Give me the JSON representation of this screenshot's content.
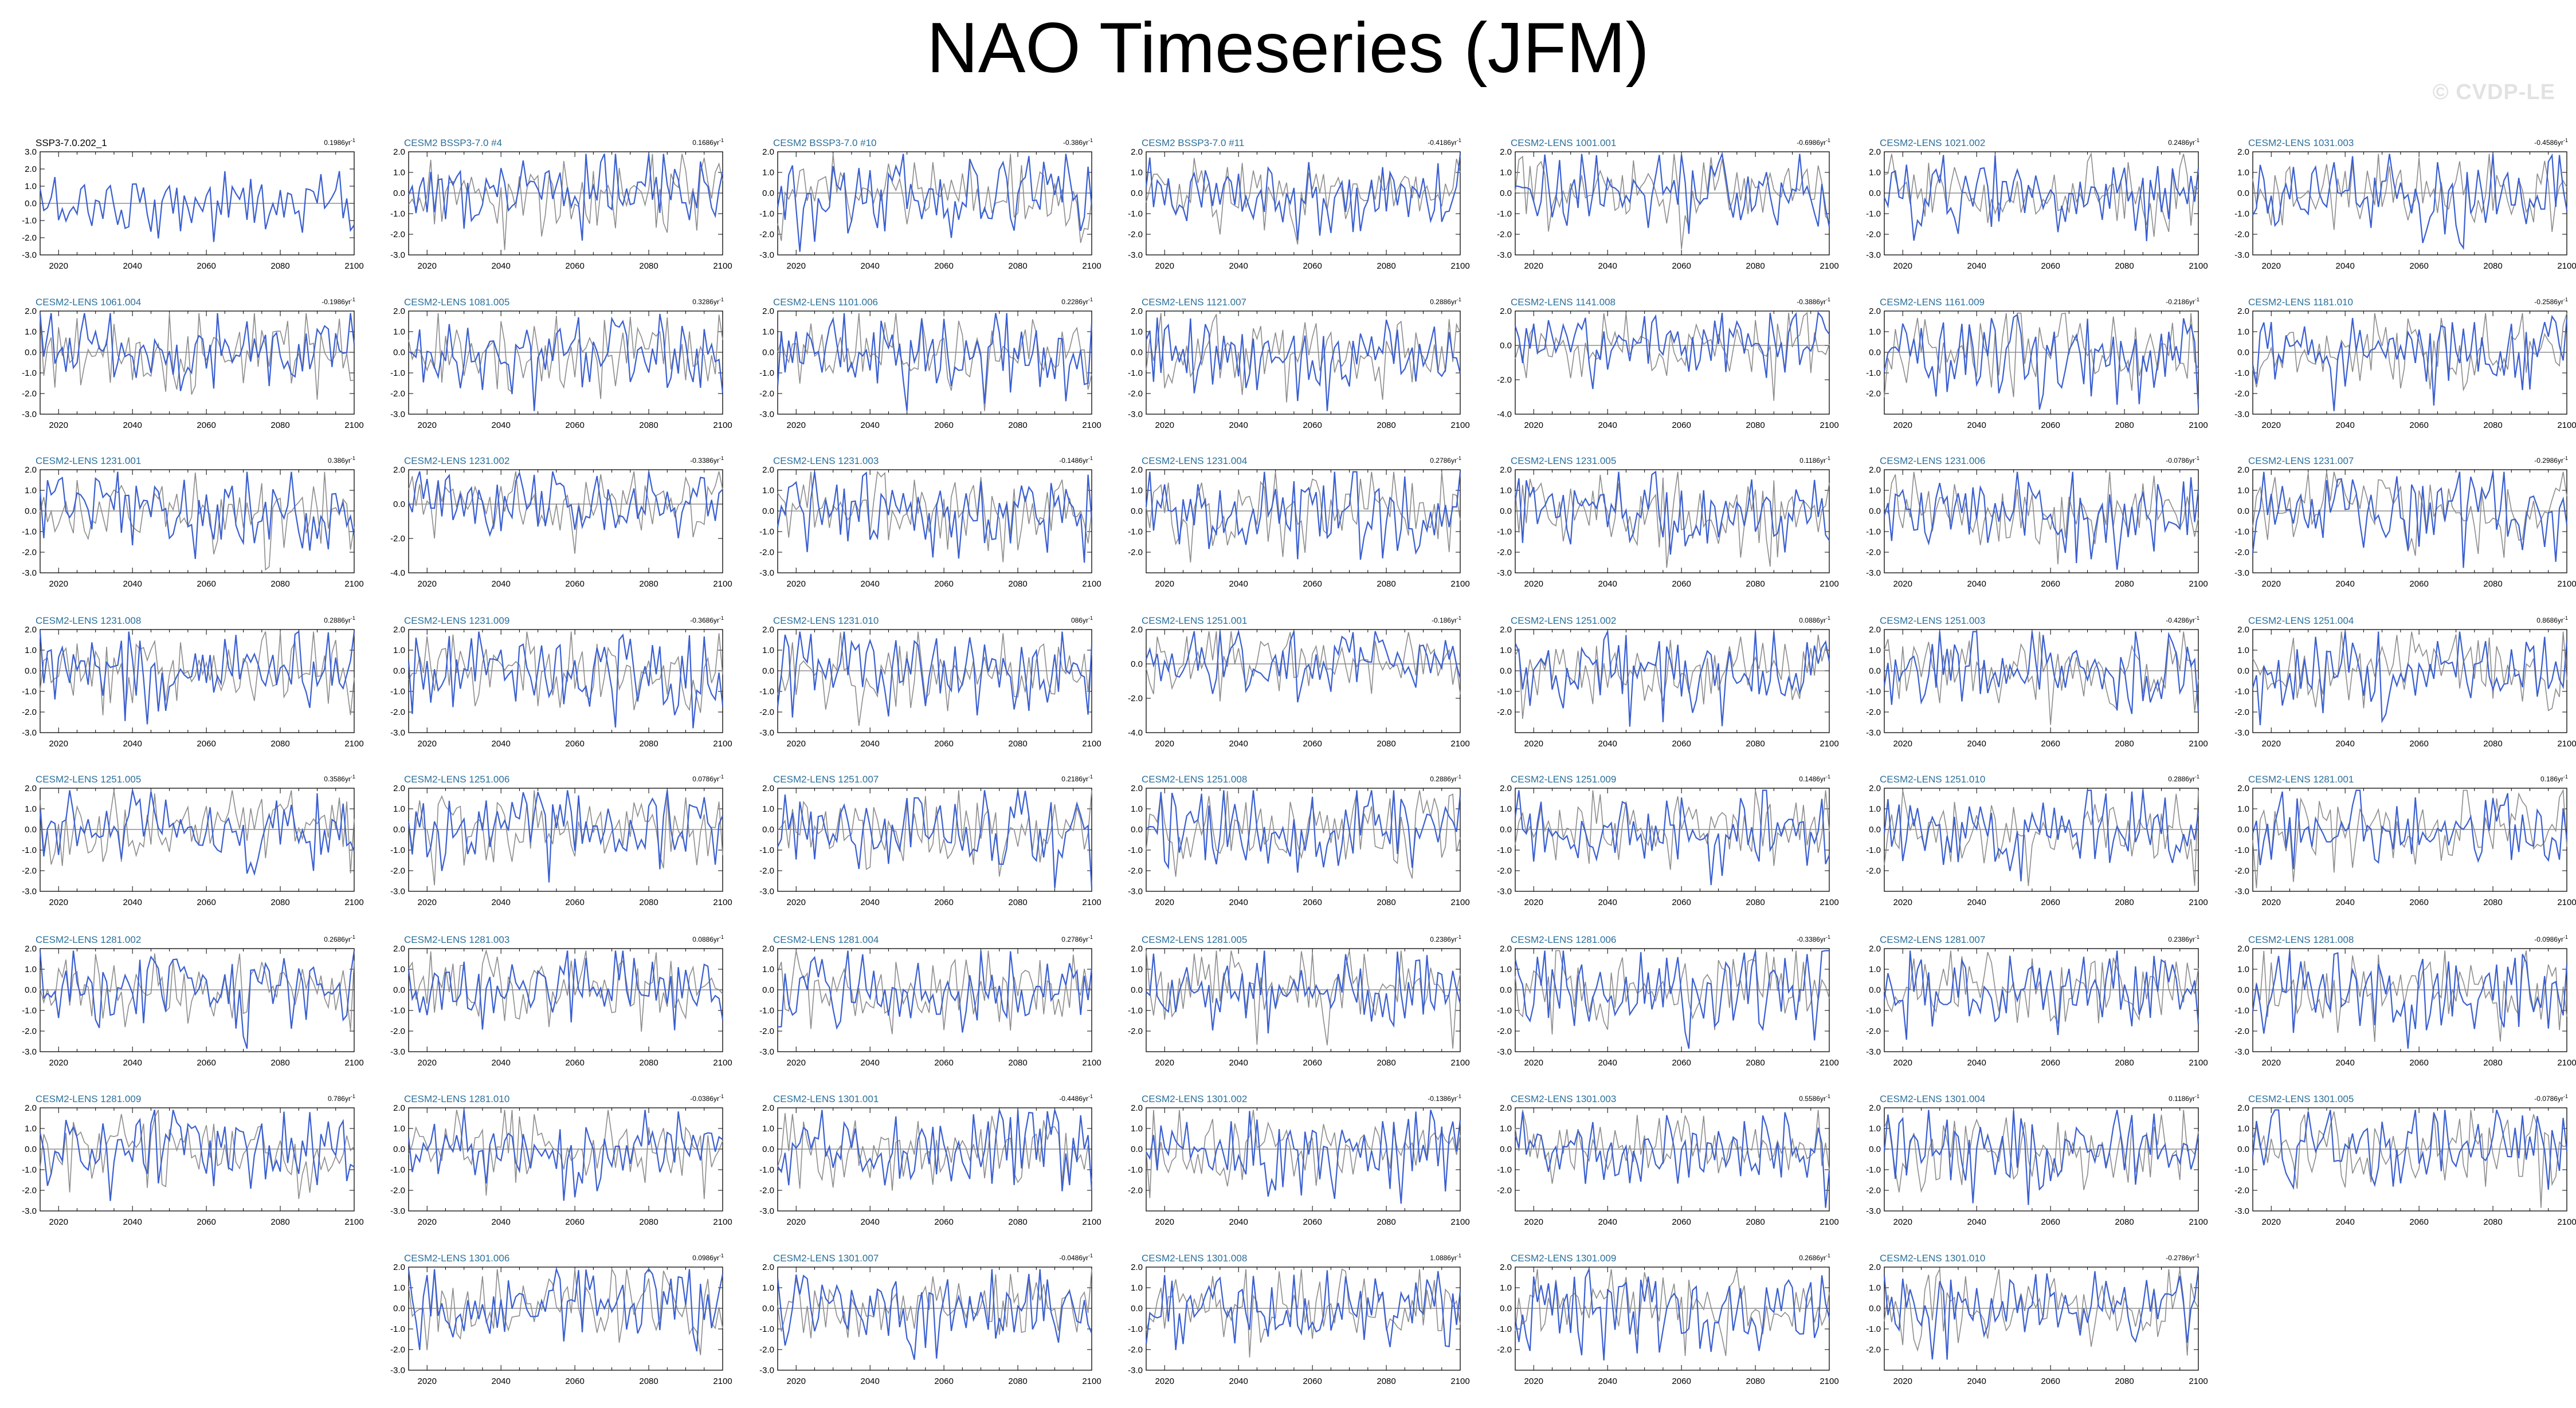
{
  "figure": {
    "title": "NAO Timeseries (JFM)",
    "watermark": "© CVDP-LE",
    "colors": {
      "simulation_line": "#3a5fd0",
      "comparison_line": "#8c8c8c",
      "title_reference": "#000000",
      "title_member": "#2a6f9b",
      "axis": "#000000"
    }
  },
  "chart_data": {
    "type": "line",
    "x_range": [
      2015,
      2100
    ],
    "x_ticks": [
      "2020",
      "2040",
      "2060",
      "2080",
      "2100"
    ],
    "trend_unit": "86yr",
    "trend_exponent": "-1",
    "series_colors": {
      "member": "#3a5fd0",
      "reference": "#8c8c8c"
    },
    "panels": [
      {
        "name": "SSP3-7.0.202_1",
        "trend": "0.19",
        "ylim": [
          -3,
          3
        ],
        "yticks": [
          "3.0",
          "2.0",
          "1.0",
          "0.0",
          "-1.0",
          "-2.0",
          "-3.0"
        ],
        "reference": true
      },
      {
        "name": "CESM2 BSSP3-7.0 #4",
        "trend": "0.16",
        "ylim": [
          -3,
          2
        ],
        "yticks": [
          "2.0",
          "1.0",
          "0.0",
          "-1.0",
          "-2.0",
          "-3.0"
        ]
      },
      {
        "name": "CESM2 BSSP3-7.0 #10",
        "trend": "-0.3",
        "ylim": [
          -3,
          2
        ],
        "yticks": [
          "2.0",
          "1.0",
          "0.0",
          "-1.0",
          "-2.0",
          "-3.0"
        ]
      },
      {
        "name": "CESM2 BSSP3-7.0 #11",
        "trend": "-0.41",
        "ylim": [
          -3,
          2
        ],
        "yticks": [
          "2.0",
          "1.0",
          "0.0",
          "-1.0",
          "-2.0",
          "-3.0"
        ]
      },
      {
        "name": "CESM2-LENS 1001.001",
        "trend": "-0.69",
        "ylim": [
          -3,
          2
        ],
        "yticks": [
          "2.0",
          "1.0",
          "0.0",
          "-1.0",
          "-2.0",
          "-3.0"
        ]
      },
      {
        "name": "CESM2-LENS 1021.002",
        "trend": "0.24",
        "ylim": [
          -3,
          2
        ],
        "yticks": [
          "2.0",
          "1.0",
          "0.0",
          "-1.0",
          "-2.0",
          "-3.0"
        ]
      },
      {
        "name": "CESM2-LENS 1031.003",
        "trend": "-0.45",
        "ylim": [
          -3,
          2
        ],
        "yticks": [
          "2.0",
          "1.0",
          "0.0",
          "-1.0",
          "-2.0",
          "-3.0"
        ]
      },
      {
        "name": "CESM2-LENS 1061.004",
        "trend": "-0.19",
        "ylim": [
          -3,
          2
        ],
        "yticks": [
          "2.0",
          "1.0",
          "0.0",
          "-1.0",
          "-2.0",
          "-3.0"
        ]
      },
      {
        "name": "CESM2-LENS 1081.005",
        "trend": "0.32",
        "ylim": [
          -3,
          2
        ],
        "yticks": [
          "2.0",
          "1.0",
          "0.0",
          "-1.0",
          "-2.0",
          "-3.0"
        ]
      },
      {
        "name": "CESM2-LENS 1101.006",
        "trend": "0.22",
        "ylim": [
          -3,
          2
        ],
        "yticks": [
          "2.0",
          "1.0",
          "0.0",
          "-1.0",
          "-2.0",
          "-3.0"
        ]
      },
      {
        "name": "CESM2-LENS 1121.007",
        "trend": "0.28",
        "ylim": [
          -3,
          2
        ],
        "yticks": [
          "2.0",
          "1.0",
          "0.0",
          "-1.0",
          "-2.0",
          "-3.0"
        ]
      },
      {
        "name": "CESM2-LENS 1141.008",
        "trend": "-0.38",
        "ylim": [
          -4,
          2
        ],
        "yticks": [
          "2.0",
          "0.0",
          "-2.0",
          "-4.0"
        ]
      },
      {
        "name": "CESM2-LENS 1161.009",
        "trend": "-0.21",
        "ylim": [
          -3,
          2
        ],
        "yticks": [
          "2.0",
          "1.0",
          "0.0",
          "-1.0",
          "-2.0"
        ]
      },
      {
        "name": "CESM2-LENS 1181.010",
        "trend": "-0.25",
        "ylim": [
          -3,
          2
        ],
        "yticks": [
          "2.0",
          "1.0",
          "0.0",
          "-1.0",
          "-2.0",
          "-3.0"
        ]
      },
      {
        "name": "CESM2-LENS 1231.001",
        "trend": "0.3",
        "ylim": [
          -3,
          2
        ],
        "yticks": [
          "2.0",
          "1.0",
          "0.0",
          "-1.0",
          "-2.0",
          "-3.0"
        ]
      },
      {
        "name": "CESM2-LENS 1231.002",
        "trend": "-0.33",
        "ylim": [
          -4,
          2
        ],
        "yticks": [
          "2.0",
          "0.0",
          "-2.0",
          "-4.0"
        ]
      },
      {
        "name": "CESM2-LENS 1231.003",
        "trend": "-0.14",
        "ylim": [
          -3,
          2
        ],
        "yticks": [
          "2.0",
          "1.0",
          "0.0",
          "-1.0",
          "-2.0",
          "-3.0"
        ]
      },
      {
        "name": "CESM2-LENS 1231.004",
        "trend": "0.27",
        "ylim": [
          -3,
          2
        ],
        "yticks": [
          "2.0",
          "1.0",
          "0.0",
          "-1.0",
          "-2.0"
        ]
      },
      {
        "name": "CESM2-LENS 1231.005",
        "trend": "0.11",
        "ylim": [
          -3,
          2
        ],
        "yticks": [
          "2.0",
          "1.0",
          "0.0",
          "-1.0",
          "-2.0",
          "-3.0"
        ]
      },
      {
        "name": "CESM2-LENS 1231.006",
        "trend": "-0.07",
        "ylim": [
          -3,
          2
        ],
        "yticks": [
          "2.0",
          "1.0",
          "0.0",
          "-1.0",
          "-2.0",
          "-3.0"
        ]
      },
      {
        "name": "CESM2-LENS 1231.007",
        "trend": "-0.29",
        "ylim": [
          -3,
          2
        ],
        "yticks": [
          "2.0",
          "1.0",
          "0.0",
          "-1.0",
          "-2.0",
          "-3.0"
        ]
      },
      {
        "name": "CESM2-LENS 1231.008",
        "trend": "0.28",
        "ylim": [
          -3,
          2
        ],
        "yticks": [
          "2.0",
          "1.0",
          "0.0",
          "-1.0",
          "-2.0",
          "-3.0"
        ]
      },
      {
        "name": "CESM2-LENS 1231.009",
        "trend": "-0.36",
        "ylim": [
          -3,
          2
        ],
        "yticks": [
          "2.0",
          "1.0",
          "0.0",
          "-1.0",
          "-2.0",
          "-3.0"
        ]
      },
      {
        "name": "CESM2-LENS 1231.010",
        "trend": "0",
        "ylim": [
          -3,
          2
        ],
        "yticks": [
          "2.0",
          "1.0",
          "0.0",
          "-1.0",
          "-2.0",
          "-3.0"
        ]
      },
      {
        "name": "CESM2-LENS 1251.001",
        "trend": "-0.1",
        "ylim": [
          -4,
          2
        ],
        "yticks": [
          "2.0",
          "0.0",
          "-2.0",
          "-4.0"
        ]
      },
      {
        "name": "CESM2-LENS 1251.002",
        "trend": "0.08",
        "ylim": [
          -3,
          2
        ],
        "yticks": [
          "2.0",
          "1.0",
          "0.0",
          "-1.0",
          "-2.0"
        ]
      },
      {
        "name": "CESM2-LENS 1251.003",
        "trend": "-0.42",
        "ylim": [
          -3,
          2
        ],
        "yticks": [
          "2.0",
          "1.0",
          "0.0",
          "-1.0",
          "-2.0",
          "-3.0"
        ]
      },
      {
        "name": "CESM2-LENS 1251.004",
        "trend": "0.86",
        "ylim": [
          -3,
          2
        ],
        "yticks": [
          "2.0",
          "1.0",
          "0.0",
          "-1.0",
          "-2.0",
          "-3.0"
        ]
      },
      {
        "name": "CESM2-LENS 1251.005",
        "trend": "0.35",
        "ylim": [
          -3,
          2
        ],
        "yticks": [
          "2.0",
          "1.0",
          "0.0",
          "-1.0",
          "-2.0",
          "-3.0"
        ]
      },
      {
        "name": "CESM2-LENS 1251.006",
        "trend": "0.07",
        "ylim": [
          -3,
          2
        ],
        "yticks": [
          "2.0",
          "1.0",
          "0.0",
          "-1.0",
          "-2.0",
          "-3.0"
        ]
      },
      {
        "name": "CESM2-LENS 1251.007",
        "trend": "0.21",
        "ylim": [
          -3,
          2
        ],
        "yticks": [
          "2.0",
          "1.0",
          "0.0",
          "-1.0",
          "-2.0",
          "-3.0"
        ]
      },
      {
        "name": "CESM2-LENS 1251.008",
        "trend": "0.28",
        "ylim": [
          -3,
          2
        ],
        "yticks": [
          "2.0",
          "1.0",
          "0.0",
          "-1.0",
          "-2.0",
          "-3.0"
        ]
      },
      {
        "name": "CESM2-LENS 1251.009",
        "trend": "0.14",
        "ylim": [
          -3,
          2
        ],
        "yticks": [
          "2.0",
          "1.0",
          "0.0",
          "-1.0",
          "-2.0",
          "-3.0"
        ]
      },
      {
        "name": "CESM2-LENS 1251.010",
        "trend": "0.28",
        "ylim": [
          -3,
          2
        ],
        "yticks": [
          "2.0",
          "1.0",
          "0.0",
          "-1.0",
          "-2.0"
        ]
      },
      {
        "name": "CESM2-LENS 1281.001",
        "trend": "0.1",
        "ylim": [
          -3,
          2
        ],
        "yticks": [
          "2.0",
          "1.0",
          "0.0",
          "-1.0",
          "-2.0",
          "-3.0"
        ]
      },
      {
        "name": "CESM2-LENS 1281.002",
        "trend": "0.26",
        "ylim": [
          -3,
          2
        ],
        "yticks": [
          "2.0",
          "1.0",
          "0.0",
          "-1.0",
          "-2.0",
          "-3.0"
        ]
      },
      {
        "name": "CESM2-LENS 1281.003",
        "trend": "0.08",
        "ylim": [
          -3,
          2
        ],
        "yticks": [
          "2.0",
          "1.0",
          "0.0",
          "-1.0",
          "-2.0",
          "-3.0"
        ]
      },
      {
        "name": "CESM2-LENS 1281.004",
        "trend": "0.27",
        "ylim": [
          -3,
          2
        ],
        "yticks": [
          "2.0",
          "1.0",
          "0.0",
          "-1.0",
          "-2.0",
          "-3.0"
        ]
      },
      {
        "name": "CESM2-LENS 1281.005",
        "trend": "0.23",
        "ylim": [
          -3,
          2
        ],
        "yticks": [
          "2.0",
          "1.0",
          "0.0",
          "-1.0",
          "-2.0"
        ]
      },
      {
        "name": "CESM2-LENS 1281.006",
        "trend": "-0.33",
        "ylim": [
          -3,
          2
        ],
        "yticks": [
          "2.0",
          "1.0",
          "0.0",
          "-1.0",
          "-2.0",
          "-3.0"
        ]
      },
      {
        "name": "CESM2-LENS 1281.007",
        "trend": "0.23",
        "ylim": [
          -3,
          2
        ],
        "yticks": [
          "2.0",
          "1.0",
          "0.0",
          "-1.0",
          "-2.0",
          "-3.0"
        ]
      },
      {
        "name": "CESM2-LENS 1281.008",
        "trend": "-0.09",
        "ylim": [
          -3,
          2
        ],
        "yticks": [
          "2.0",
          "1.0",
          "0.0",
          "-1.0",
          "-2.0",
          "-3.0"
        ]
      },
      {
        "name": "CESM2-LENS 1281.009",
        "trend": "0.7",
        "ylim": [
          -3,
          2
        ],
        "yticks": [
          "2.0",
          "1.0",
          "0.0",
          "-1.0",
          "-2.0",
          "-3.0"
        ]
      },
      {
        "name": "CESM2-LENS 1281.010",
        "trend": "-0.03",
        "ylim": [
          -3,
          2
        ],
        "yticks": [
          "2.0",
          "1.0",
          "0.0",
          "-1.0",
          "-2.0",
          "-3.0"
        ]
      },
      {
        "name": "CESM2-LENS 1301.001",
        "trend": "-0.44",
        "ylim": [
          -3,
          2
        ],
        "yticks": [
          "2.0",
          "1.0",
          "0.0",
          "-1.0",
          "-2.0",
          "-3.0"
        ]
      },
      {
        "name": "CESM2-LENS 1301.002",
        "trend": "-0.13",
        "ylim": [
          -3,
          2
        ],
        "yticks": [
          "2.0",
          "1.0",
          "0.0",
          "-1.0",
          "-2.0"
        ]
      },
      {
        "name": "CESM2-LENS 1301.003",
        "trend": "0.55",
        "ylim": [
          -3,
          2
        ],
        "yticks": [
          "2.0",
          "1.0",
          "0.0",
          "-1.0",
          "-2.0"
        ]
      },
      {
        "name": "CESM2-LENS 1301.004",
        "trend": "0.11",
        "ylim": [
          -3,
          2
        ],
        "yticks": [
          "2.0",
          "1.0",
          "0.0",
          "-1.0",
          "-2.0",
          "-3.0"
        ]
      },
      {
        "name": "CESM2-LENS 1301.005",
        "trend": "-0.07",
        "ylim": [
          -3,
          2
        ],
        "yticks": [
          "2.0",
          "1.0",
          "0.0",
          "-1.0",
          "-2.0",
          "-3.0"
        ]
      },
      {
        "name": "CESM2-LENS 1301.006",
        "trend": "0.09",
        "ylim": [
          -3,
          2
        ],
        "yticks": [
          "2.0",
          "1.0",
          "0.0",
          "-1.0",
          "-2.0",
          "-3.0"
        ]
      },
      {
        "name": "CESM2-LENS 1301.007",
        "trend": "-0.04",
        "ylim": [
          -3,
          2
        ],
        "yticks": [
          "2.0",
          "1.0",
          "0.0",
          "-1.0",
          "-2.0",
          "-3.0"
        ]
      },
      {
        "name": "CESM2-LENS 1301.008",
        "trend": "1.08",
        "ylim": [
          -3,
          2
        ],
        "yticks": [
          "2.0",
          "1.0",
          "0.0",
          "-1.0",
          "-2.0",
          "-3.0"
        ]
      },
      {
        "name": "CESM2-LENS 1301.009",
        "trend": "0.26",
        "ylim": [
          -3,
          2
        ],
        "yticks": [
          "2.0",
          "1.0",
          "0.0",
          "-1.0",
          "-2.0"
        ]
      },
      {
        "name": "CESM2-LENS 1301.010",
        "trend": "-0.27",
        "ylim": [
          -3,
          2
        ],
        "yticks": [
          "2.0",
          "1.0",
          "0.0",
          "-1.0",
          "-2.0"
        ]
      }
    ]
  }
}
